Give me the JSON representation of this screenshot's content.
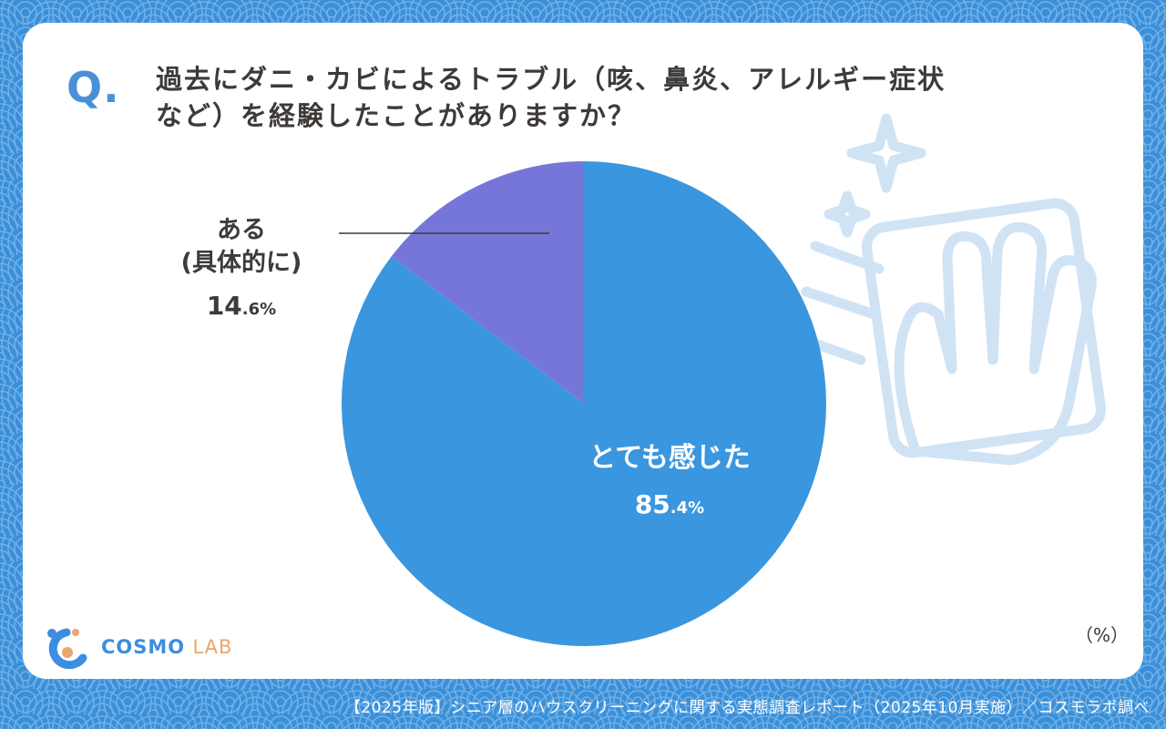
{
  "question": {
    "mark": "Q.",
    "line1": "過去にダニ・カビによるトラブル（咳、鼻炎、アレルギー症状",
    "line2": "など）を経験したことがありますか？"
  },
  "chart_data": {
    "type": "pie",
    "unit": "（%）",
    "slices": [
      {
        "label": "とても感じた",
        "value": 85.4,
        "value_int": "85",
        "value_dec": ".4%",
        "color": "#3a96de"
      },
      {
        "label_line1": "ある",
        "label_line2": "(具体的に)",
        "value": 14.6,
        "value_int": "14",
        "value_dec": ".6%",
        "color": "#7676d9"
      }
    ]
  },
  "logo": {
    "part1": "COSMO",
    "part2": "LAB"
  },
  "footer": "【2025年版】シニア層のハウスクリーニングに関する実態調査レポート（2025年10月実施）／コスモラボ調べ",
  "colors": {
    "background": "#3a8fd8",
    "card": "#ffffff",
    "accent": "#4a90d6"
  },
  "icons": [
    "wave-pattern",
    "cleaning-hand-icon",
    "sparkle-icon",
    "cosmo-lab-logo-icon"
  ]
}
